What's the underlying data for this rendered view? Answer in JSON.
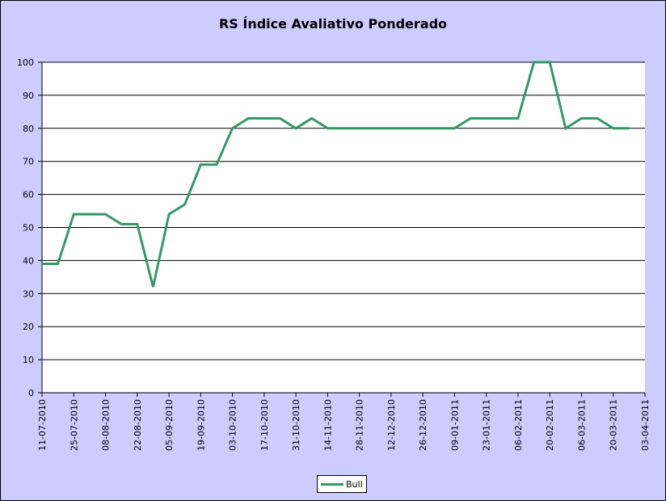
{
  "chart_data": {
    "type": "line",
    "title": "RS Índice Avaliativo Ponderado",
    "xlabel": "",
    "ylabel": "",
    "ylim": [
      0,
      100
    ],
    "y_ticks": [
      0,
      10,
      20,
      30,
      40,
      50,
      60,
      70,
      80,
      90,
      100
    ],
    "x_ticks": [
      "11-07-2010",
      "25-07-2010",
      "08-08-2010",
      "22-08-2010",
      "05-09-2010",
      "19-09-2010",
      "03-10-2010",
      "17-10-2010",
      "31-10-2010",
      "14-11-2010",
      "28-11-2010",
      "12-12-2010",
      "26-12-2010",
      "09-01-2011",
      "23-01-2011",
      "06-02-2011",
      "20-02-2011",
      "06-03-2011",
      "20-03-2011",
      "03-04-2011"
    ],
    "x_range": [
      "11-07-2010",
      "03-04-2011"
    ],
    "grid": "horizontal",
    "legend_position": "bottom",
    "series": [
      {
        "name": "Bull",
        "color": "#339966",
        "x": [
          "11-07-2010",
          "18-07-2010",
          "25-07-2010",
          "01-08-2010",
          "08-08-2010",
          "15-08-2010",
          "22-08-2010",
          "29-08-2010",
          "05-09-2010",
          "12-09-2010",
          "19-09-2010",
          "26-09-2010",
          "03-10-2010",
          "10-10-2010",
          "17-10-2010",
          "24-10-2010",
          "31-10-2010",
          "07-11-2010",
          "14-11-2010",
          "21-11-2010",
          "28-11-2010",
          "05-12-2010",
          "12-12-2010",
          "19-12-2010",
          "26-12-2010",
          "02-01-2011",
          "09-01-2011",
          "16-01-2011",
          "23-01-2011",
          "30-01-2011",
          "06-02-2011",
          "13-02-2011",
          "20-02-2011",
          "27-02-2011",
          "06-03-2011",
          "13-03-2011",
          "20-03-2011",
          "27-03-2011"
        ],
        "values": [
          39,
          39,
          54,
          54,
          54,
          51,
          51,
          32,
          54,
          57,
          69,
          69,
          80,
          83,
          83,
          83,
          80,
          83,
          80,
          80,
          80,
          80,
          80,
          80,
          80,
          80,
          80,
          83,
          83,
          83,
          83,
          100,
          100,
          80,
          83,
          83,
          80,
          80
        ]
      }
    ]
  }
}
